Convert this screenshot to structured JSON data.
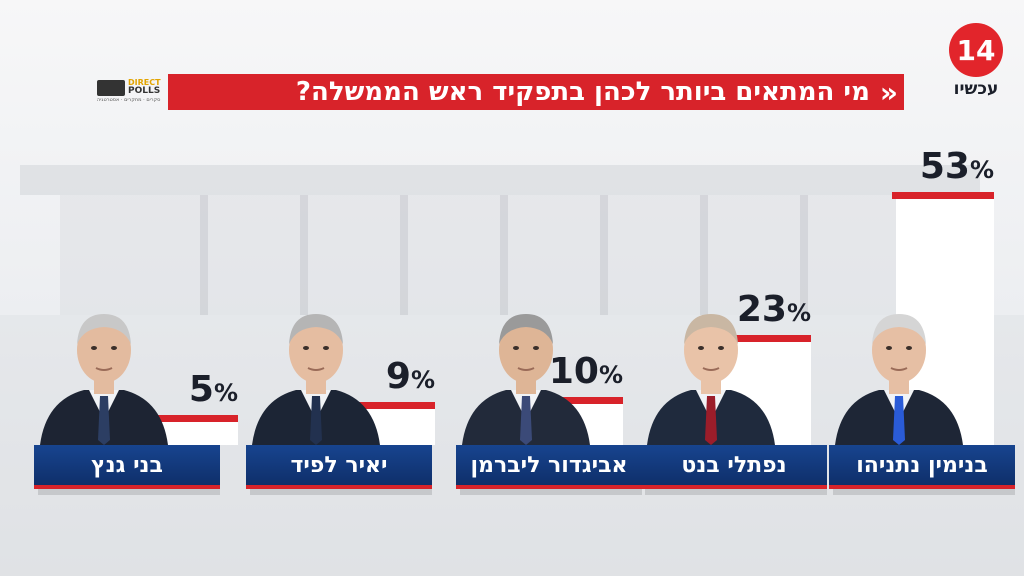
{
  "header": {
    "title": "מי המתאים ביותר לכהן בתפקיד ראש הממשלה?",
    "chevrons": "«"
  },
  "channel_logo": {
    "number": "14",
    "name": "עכשיו"
  },
  "pollster_logo": {
    "line1": "DIRECT",
    "line2": "POLLS",
    "tagline": "סקרים · מחקרים · אסטרטגיה"
  },
  "colors": {
    "accent": "#d8232a",
    "plate": "#17448f",
    "text": "#1b1f2a"
  },
  "chart_data": {
    "type": "bar",
    "categories": [
      "בנימין נתניהו",
      "נפתלי בנט",
      "אביגדור ליברמן",
      "יאיר לפיד",
      "בני גנץ"
    ],
    "values": [
      53,
      23,
      10,
      9,
      5
    ],
    "value_suffix": "%",
    "title": "מי המתאים ביותר לכהן בתפקיד ראש הממשלה?",
    "xlabel": "",
    "ylabel": "",
    "ylim": [
      0,
      53
    ],
    "grid": false,
    "legend": "none"
  }
}
